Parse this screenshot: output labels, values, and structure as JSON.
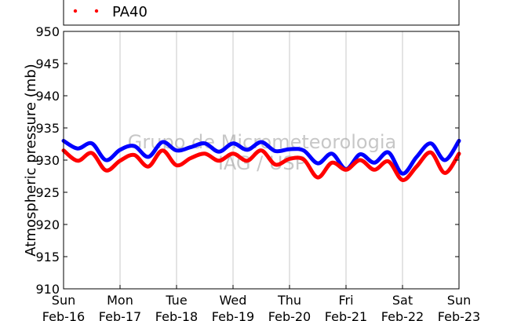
{
  "chart_data": {
    "type": "line",
    "title": "",
    "xlabel": "",
    "ylabel": "Atmospheric pressure (mb)",
    "ylim": [
      910,
      950
    ],
    "yticks": [
      "910",
      "915",
      "920",
      "925",
      "930",
      "935",
      "940",
      "945",
      "950"
    ],
    "xlim": [
      "Feb-16",
      "Feb-23"
    ],
    "xticks": [
      {
        "day": "Sun",
        "date": "Feb-16"
      },
      {
        "day": "Mon",
        "date": "Feb-17"
      },
      {
        "day": "Tue",
        "date": "Feb-18"
      },
      {
        "day": "Wed",
        "date": "Feb-19"
      },
      {
        "day": "Thu",
        "date": "Feb-20"
      },
      {
        "day": "Fri",
        "date": "Feb-21"
      },
      {
        "day": "Sat",
        "date": "Feb-22"
      },
      {
        "day": "Sun",
        "date": "Feb-23"
      }
    ],
    "grid": "vertical",
    "legend": {
      "placement": "top-left",
      "entries": [
        "PA40"
      ]
    },
    "watermark": [
      "Grupo de Micrometeorologia",
      "IAG / USP"
    ],
    "series": [
      {
        "name": "",
        "color": "#0000ff",
        "x": [
          "Feb-16 00:00",
          "Feb-16 06:00",
          "Feb-16 12:00",
          "Feb-16 18:00",
          "Feb-17 00:00",
          "Feb-17 06:00",
          "Feb-17 12:00",
          "Feb-17 18:00",
          "Feb-18 00:00",
          "Feb-18 06:00",
          "Feb-18 12:00",
          "Feb-18 18:00",
          "Feb-19 00:00",
          "Feb-19 06:00",
          "Feb-19 12:00",
          "Feb-19 18:00",
          "Feb-20 00:00",
          "Feb-20 06:00",
          "Feb-20 12:00",
          "Feb-20 18:00",
          "Feb-21 00:00",
          "Feb-21 06:00",
          "Feb-21 12:00",
          "Feb-21 18:00",
          "Feb-22 00:00",
          "Feb-22 06:00",
          "Feb-22 12:00",
          "Feb-22 18:00",
          "Feb-23 00:00"
        ],
        "values": [
          933.0,
          931.8,
          932.6,
          930.0,
          931.6,
          932.2,
          930.5,
          932.8,
          931.5,
          932.0,
          932.6,
          931.3,
          932.6,
          931.6,
          932.8,
          931.4,
          931.7,
          931.5,
          929.5,
          931.0,
          928.6,
          930.9,
          929.6,
          931.2,
          927.9,
          930.5,
          932.6,
          930.0,
          933.0
        ]
      },
      {
        "name": "PA40",
        "color": "#ff0000",
        "x": [
          "Feb-16 00:00",
          "Feb-16 06:00",
          "Feb-16 12:00",
          "Feb-16 18:00",
          "Feb-17 00:00",
          "Feb-17 06:00",
          "Feb-17 12:00",
          "Feb-17 18:00",
          "Feb-18 00:00",
          "Feb-18 06:00",
          "Feb-18 12:00",
          "Feb-18 18:00",
          "Feb-19 00:00",
          "Feb-19 06:00",
          "Feb-19 12:00",
          "Feb-19 18:00",
          "Feb-20 00:00",
          "Feb-20 06:00",
          "Feb-20 12:00",
          "Feb-20 18:00",
          "Feb-21 00:00",
          "Feb-21 06:00",
          "Feb-21 12:00",
          "Feb-21 18:00",
          "Feb-22 00:00",
          "Feb-22 06:00",
          "Feb-22 12:00",
          "Feb-22 18:00",
          "Feb-23 00:00"
        ],
        "values": [
          931.5,
          929.9,
          931.1,
          928.4,
          929.9,
          930.8,
          929.0,
          931.5,
          929.2,
          930.3,
          931.0,
          929.9,
          931.0,
          929.9,
          931.5,
          929.3,
          930.2,
          930.1,
          927.3,
          929.6,
          928.5,
          930.0,
          928.5,
          929.8,
          926.9,
          929.0,
          931.2,
          928.0,
          931.0
        ]
      }
    ]
  }
}
